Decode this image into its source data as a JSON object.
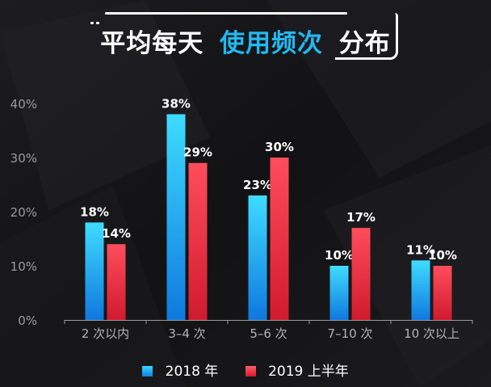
{
  "title": {
    "part1": "平均每天",
    "part2": "使用频次",
    "part3": "分布"
  },
  "colors": {
    "accent": "#22b8f0",
    "series_2018": "#19b8f5",
    "series_2019": "#f0283c",
    "axis": "#8a8a8a",
    "background": "#141417"
  },
  "chart_data": {
    "type": "bar",
    "title": "平均每天 使用频次 分布",
    "categories": [
      "2 次以内",
      "3–4 次",
      "5–6 次",
      "7–10 次",
      "10 次以上"
    ],
    "series": [
      {
        "name": "2018 年",
        "values": [
          18,
          38,
          23,
          10,
          11
        ],
        "labels": [
          "18%",
          "38%",
          "23%",
          "10%",
          "11%"
        ]
      },
      {
        "name": "2019 上半年",
        "values": [
          14,
          29,
          30,
          17,
          10
        ],
        "labels": [
          "14%",
          "29%",
          "30%",
          "17%",
          "10%"
        ]
      }
    ],
    "y_ticks": [
      0,
      10,
      20,
      30,
      40
    ],
    "y_tick_labels": [
      "0%",
      "10%",
      "20%",
      "30%",
      "40%"
    ],
    "ylim": [
      0,
      40
    ],
    "xlabel": "",
    "ylabel": "",
    "grid": false,
    "legend_position": "bottom-center"
  }
}
